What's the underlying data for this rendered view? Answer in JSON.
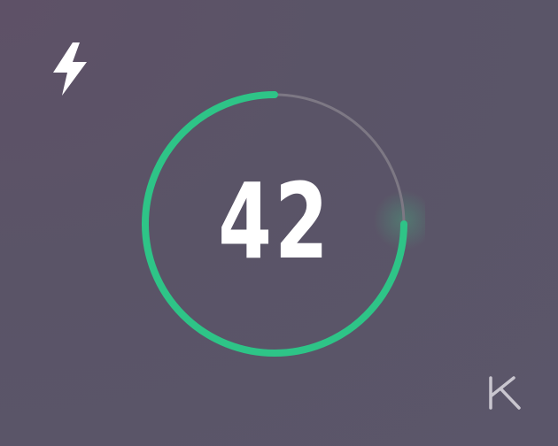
{
  "timer": {
    "value": "42",
    "progress_fraction": 0.75
  },
  "icons": {
    "top_left": "lightning-bolt-icon",
    "bottom_right": "brand-k-logo-icon"
  },
  "colors": {
    "background": "#5b556a",
    "progress_arc": "#2ec487",
    "track": "#7d7884",
    "text": "#ffffff"
  }
}
